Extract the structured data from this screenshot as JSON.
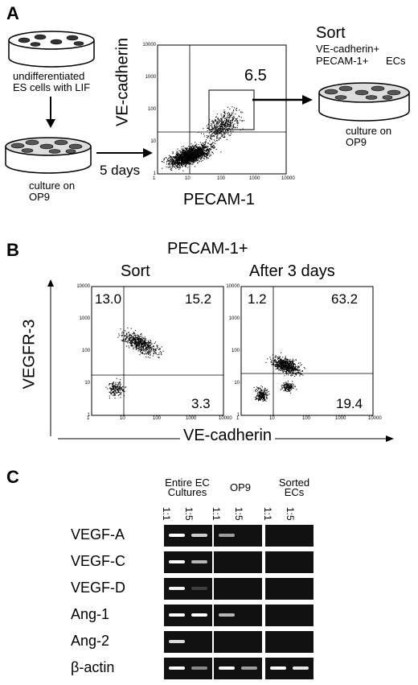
{
  "panel_a": {
    "label": "A",
    "dish1_text": "undifferentiated ES cells with LIF",
    "dish2_text": "culture on OP9",
    "arrow_text": "5 days",
    "plot_ylabel": "VE-cadherin",
    "plot_xlabel": "PECAM-1",
    "gate_value": "6.5",
    "sort_title": "Sort",
    "sort_line1": "VE-cadherin+",
    "sort_line2": "PECAM-1+",
    "sort_line2b": "ECs",
    "dish3_text": "culture on OP9",
    "xticks": [
      "1",
      "10",
      "100",
      "1000",
      "10000"
    ],
    "yticks": [
      "10000",
      "1000",
      "100",
      "10",
      "1"
    ]
  },
  "panel_b": {
    "label": "B",
    "title": "PECAM-1+",
    "left_subtitle": "Sort",
    "right_subtitle": "After 3 days",
    "ylabel": "VEGFR-3",
    "xlabel": "VE-cadherin",
    "left_quadrants": {
      "ul": "13.0",
      "ur": "15.2",
      "lr": "3.3"
    },
    "right_quadrants": {
      "ul": "1.2",
      "ur": "63.2",
      "lr": "19.4"
    },
    "xticks": [
      "1",
      "10",
      "100",
      "1000",
      "10000"
    ],
    "yticks": [
      "10000",
      "1000",
      "100",
      "10",
      "1"
    ]
  },
  "panel_c": {
    "label": "C",
    "groups": [
      {
        "name": "Entire EC Cultures"
      },
      {
        "name": "OP9"
      },
      {
        "name": "Sorted ECs"
      }
    ],
    "dilutions": [
      "1:1",
      "1:5"
    ],
    "genes": [
      "VEGF-A",
      "VEGF-C",
      "VEGF-D",
      "Ang-1",
      "Ang-2",
      "β-actin"
    ]
  }
}
